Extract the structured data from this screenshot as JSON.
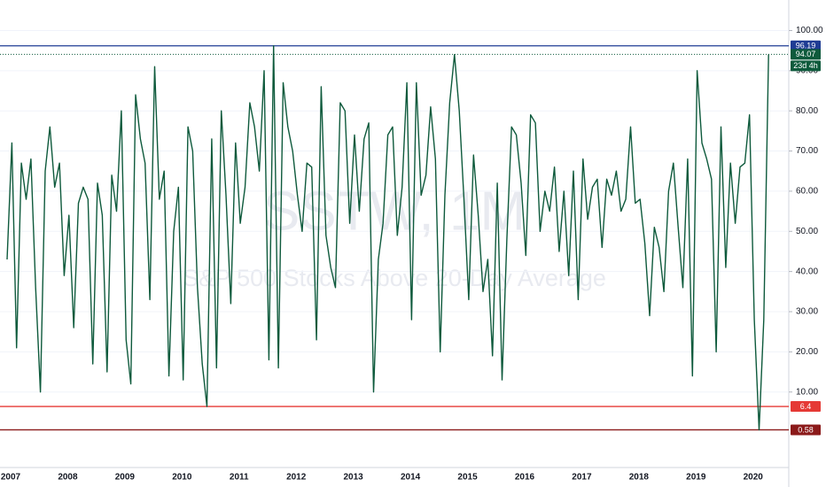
{
  "chart_data": {
    "type": "line",
    "title": "SSTW, 1M",
    "subtitle": "S&P 500 Stocks Above 20-Day Average",
    "color": "#0e5a3c",
    "categories": [
      "2007",
      null,
      null,
      null,
      null,
      null,
      null,
      null,
      null,
      null,
      null,
      null,
      "2008",
      null,
      null,
      null,
      null,
      null,
      null,
      null,
      null,
      null,
      null,
      null,
      "2009",
      null,
      null,
      null,
      null,
      null,
      null,
      null,
      null,
      null,
      null,
      null,
      "2010",
      null,
      null,
      null,
      null,
      null,
      null,
      null,
      null,
      null,
      null,
      null,
      "2011",
      null,
      null,
      null,
      null,
      null,
      null,
      null,
      null,
      null,
      null,
      null,
      "2012",
      null,
      null,
      null,
      null,
      null,
      null,
      null,
      null,
      null,
      null,
      null,
      "2013",
      null,
      null,
      null,
      null,
      null,
      null,
      null,
      null,
      null,
      null,
      null,
      "2014",
      null,
      null,
      null,
      null,
      null,
      null,
      null,
      null,
      null,
      null,
      null,
      "2015",
      null,
      null,
      null,
      null,
      null,
      null,
      null,
      null,
      null,
      null,
      null,
      "2016",
      null,
      null,
      null,
      null,
      null,
      null,
      null,
      null,
      null,
      null,
      null,
      "2017",
      null,
      null,
      null,
      null,
      null,
      null,
      null,
      null,
      null,
      null,
      null,
      "2018",
      null,
      null,
      null,
      null,
      null,
      null,
      null,
      null,
      null,
      null,
      null,
      "2019",
      null,
      null,
      null,
      null,
      null,
      null,
      null,
      null,
      null,
      null,
      null,
      "2020",
      null,
      null,
      null,
      null
    ],
    "values": [
      43,
      72,
      21,
      67,
      58,
      68,
      36,
      10,
      65,
      76,
      61,
      67,
      39,
      54,
      26,
      57,
      61,
      58,
      17,
      62,
      54,
      15,
      64,
      55,
      80,
      23,
      12,
      84,
      73,
      67,
      33,
      91,
      58,
      65,
      14,
      50,
      61,
      13,
      76,
      70,
      36,
      17,
      6.4,
      73,
      16,
      80,
      59,
      32,
      72,
      52,
      61,
      82,
      76,
      65,
      90,
      18,
      96.19,
      16,
      87,
      76,
      70,
      59,
      50,
      67,
      66,
      23,
      86,
      49,
      41,
      36,
      82,
      80,
      52,
      74,
      55,
      73,
      77,
      10,
      43,
      52,
      74,
      76,
      49,
      61,
      87,
      28,
      87,
      59,
      64,
      81,
      68,
      20,
      59,
      82,
      94,
      80,
      58,
      33,
      69,
      54,
      35,
      43,
      19,
      62,
      13,
      48,
      76,
      74,
      62,
      44,
      79,
      77,
      50,
      60,
      55,
      66,
      45,
      60,
      39,
      65,
      33,
      68,
      53,
      61,
      63,
      46,
      63,
      59,
      65,
      55,
      58,
      76,
      57,
      58,
      47,
      29,
      51,
      46,
      35,
      60,
      67,
      51,
      36,
      68,
      14,
      90,
      72,
      68,
      63,
      20,
      76,
      41,
      67,
      52,
      66,
      67,
      79,
      28,
      0.58,
      28,
      94.07
    ],
    "ylim": [
      -8.8,
      107.6
    ],
    "yticks": [
      {
        "value": 10,
        "label": "10.00"
      },
      {
        "value": 20,
        "label": "20.00"
      },
      {
        "value": 30,
        "label": "30.00"
      },
      {
        "value": 40,
        "label": "40.00"
      },
      {
        "value": 50,
        "label": "50.00"
      },
      {
        "value": 60,
        "label": "60.00"
      },
      {
        "value": 70,
        "label": "70.00"
      },
      {
        "value": 80,
        "label": "80.00"
      },
      {
        "value": 90,
        "label": "90.00"
      },
      {
        "value": 100,
        "label": "100.00"
      }
    ],
    "grid": true,
    "levels": [
      {
        "value": 96.19,
        "color": "#1f3c94"
      },
      {
        "value": 6.4,
        "color": "#e53935"
      },
      {
        "value": 0.58,
        "color": "#8b1a1a"
      }
    ],
    "countdown": "23d 4h"
  }
}
